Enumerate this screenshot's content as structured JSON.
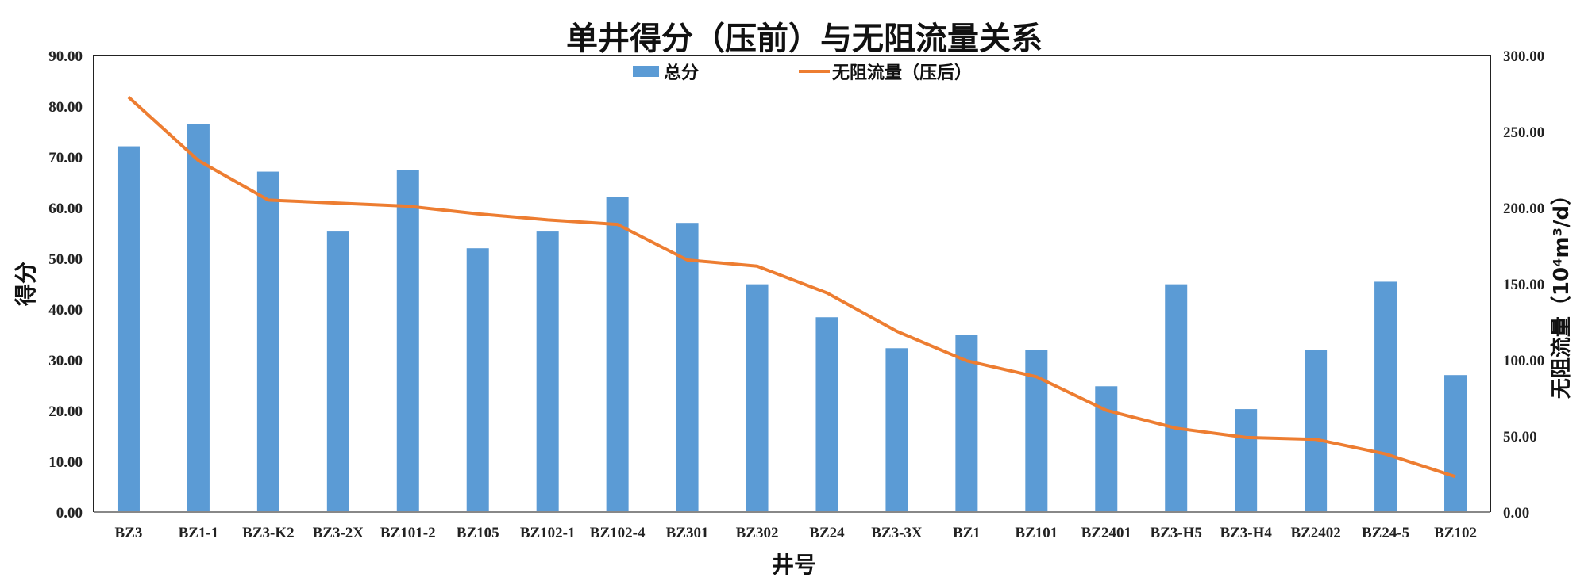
{
  "chart_data": {
    "type": "bar+line",
    "title": "单井得分（压前）与无阻流量关系",
    "xlabel": "井号",
    "ylabel": "得分",
    "y2label": "无阻流量（10⁴m³/d）",
    "ylim": [
      0,
      90
    ],
    "y2lim": [
      0,
      300
    ],
    "yticks": [
      "0.00",
      "10.00",
      "20.00",
      "30.00",
      "40.00",
      "50.00",
      "60.00",
      "70.00",
      "80.00",
      "90.00"
    ],
    "y2ticks": [
      "0.00",
      "50.00",
      "100.00",
      "150.00",
      "200.00",
      "250.00",
      "300.00"
    ],
    "grid": false,
    "legend_position": "top-center",
    "categories": [
      "BZ3",
      "BZ1-1",
      "BZ3-K2",
      "BZ3-2X",
      "BZ101-2",
      "BZ105",
      "BZ102-1",
      "BZ102-4",
      "BZ301",
      "BZ302",
      "BZ24",
      "BZ3-3X",
      "BZ1",
      "BZ101",
      "BZ2401",
      "BZ3-H5",
      "BZ3-H4",
      "BZ2402",
      "BZ24-5",
      "BZ102"
    ],
    "series": [
      {
        "name": "总分",
        "type": "bar",
        "axis": "left",
        "color": "#5B9BD5",
        "values": [
          72.1,
          76.5,
          67.1,
          55.3,
          67.4,
          52.0,
          55.3,
          62.1,
          57.0,
          44.9,
          38.4,
          32.3,
          34.9,
          32.0,
          24.8,
          44.9,
          20.3,
          32.0,
          45.4,
          27.0
        ]
      },
      {
        "name": "无阻流量（压后）",
        "type": "line",
        "axis": "right",
        "color": "#ED7D31",
        "values": [
          272.6,
          231.0,
          205.0,
          203.0,
          201.0,
          196.0,
          192.0,
          189.0,
          165.6,
          161.6,
          144.0,
          118.8,
          99.4,
          88.9,
          66.9,
          55.1,
          49.0,
          47.8,
          38.2,
          23.3
        ]
      }
    ]
  }
}
